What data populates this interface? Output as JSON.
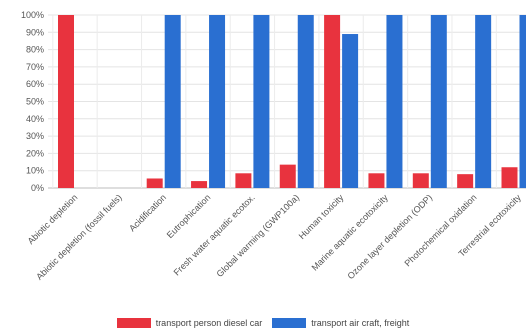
{
  "chart_data": {
    "type": "bar",
    "categories": [
      "Abiotic depletion",
      "Abiotic depletion (fossil fuels)",
      "Acidification",
      "Eutrophication",
      "Fresh water aquatic ecotox.",
      "Global warming (GWP100a)",
      "Human toxicity",
      "Marine aquatic ecotoxicity",
      "Ozone layer depletion (ODP)",
      "Photochemical oxidation",
      "Terrestrial ecotoxicity"
    ],
    "series": [
      {
        "name": "transport person diesel car",
        "color": "#e8333e",
        "values": [
          100,
          0,
          5.5,
          4,
          8.5,
          13.5,
          100,
          8.5,
          8.5,
          8,
          12
        ]
      },
      {
        "name": "transport air craft, freight",
        "color": "#2a6fd1",
        "values": [
          0,
          0,
          100,
          100,
          100,
          100,
          89,
          100,
          100,
          100,
          100
        ]
      }
    ],
    "ylim": [
      0,
      100
    ],
    "yticks": [
      "0%",
      "10%",
      "20%",
      "30%",
      "40%",
      "50%",
      "60%",
      "70%",
      "80%",
      "90%",
      "100%"
    ],
    "grid": true,
    "legend_position": "bottom"
  }
}
